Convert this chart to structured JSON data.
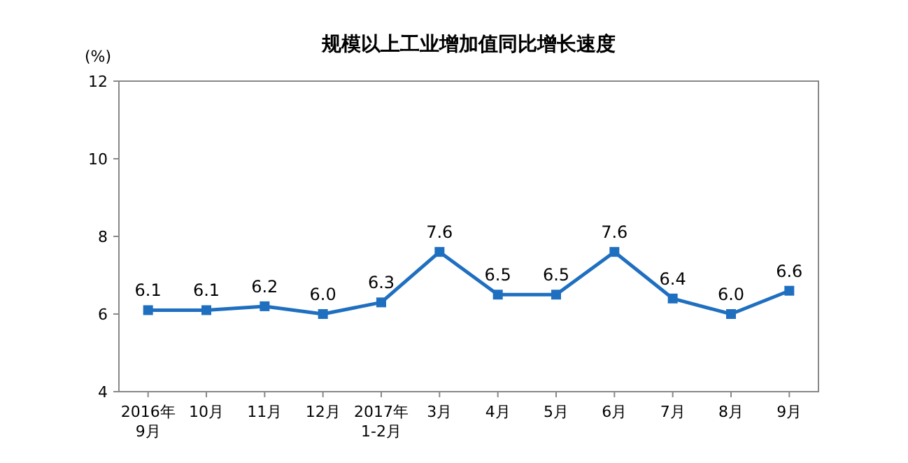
{
  "chart_data": {
    "type": "line",
    "title": "规模以上工业增加值同比增长速度",
    "ylabel": "(%)",
    "categories": [
      "2016年\n9月",
      "10月",
      "11月",
      "12月",
      "2017年\n1-2月",
      "3月",
      "4月",
      "5月",
      "6月",
      "7月",
      "8月",
      "9月"
    ],
    "series": [
      {
        "color": "#1f6fc0",
        "values": [
          6.1,
          6.1,
          6.2,
          6.0,
          6.3,
          7.6,
          6.5,
          6.5,
          7.6,
          6.4,
          6.0,
          6.6
        ],
        "value_labels": [
          "6.1",
          "6.1",
          "6.2",
          "6.0",
          "6.3",
          "7.6",
          "6.5",
          "6.5",
          "7.6",
          "6.4",
          "6.0",
          "6.6"
        ]
      }
    ],
    "ylim": [
      4,
      12
    ],
    "yticks": [
      4,
      6,
      8,
      10,
      12
    ],
    "marker": "square",
    "grid": false
  }
}
